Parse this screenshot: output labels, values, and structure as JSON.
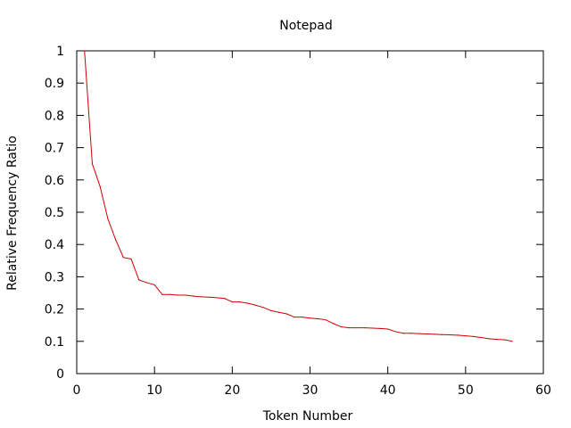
{
  "chart_data": {
    "type": "line",
    "title": "Notepad",
    "xlabel": "Token Number",
    "ylabel": "Relative Frequency Ratio",
    "xlim": [
      0,
      60
    ],
    "ylim": [
      0,
      1
    ],
    "x_ticks": [
      0,
      10,
      20,
      30,
      40,
      50,
      60
    ],
    "y_ticks": [
      0,
      0.1,
      0.2,
      0.3,
      0.4,
      0.5,
      0.6,
      0.7,
      0.8,
      0.9,
      1
    ],
    "x_tick_labels": [
      "0",
      "10",
      "20",
      "30",
      "40",
      "50",
      "60"
    ],
    "y_tick_labels": [
      "0",
      "0.1",
      "0.2",
      "0.3",
      "0.4",
      "0.5",
      "0.6",
      "0.7",
      "0.8",
      "0.9",
      "1"
    ],
    "grid": false,
    "legend": "none",
    "series": [
      {
        "color": "#cc0000",
        "x": [
          1,
          2,
          3,
          4,
          5,
          6,
          7,
          8,
          9,
          10,
          11,
          12,
          13,
          14,
          15,
          16,
          17,
          18,
          19,
          20,
          21,
          22,
          23,
          24,
          25,
          26,
          27,
          28,
          29,
          30,
          31,
          32,
          33,
          34,
          35,
          36,
          37,
          38,
          39,
          40,
          41,
          42,
          43,
          44,
          45,
          46,
          47,
          48,
          49,
          50,
          51,
          52,
          53,
          54,
          55,
          56
        ],
        "values": [
          1.0,
          0.65,
          0.58,
          0.48,
          0.415,
          0.36,
          0.355,
          0.29,
          0.282,
          0.275,
          0.245,
          0.245,
          0.243,
          0.243,
          0.24,
          0.238,
          0.237,
          0.235,
          0.233,
          0.222,
          0.222,
          0.218,
          0.212,
          0.205,
          0.195,
          0.19,
          0.185,
          0.175,
          0.175,
          0.172,
          0.17,
          0.167,
          0.155,
          0.145,
          0.142,
          0.142,
          0.142,
          0.141,
          0.14,
          0.138,
          0.13,
          0.125,
          0.125,
          0.124,
          0.123,
          0.122,
          0.121,
          0.12,
          0.119,
          0.117,
          0.115,
          0.112,
          0.108,
          0.106,
          0.105,
          0.1
        ]
      }
    ]
  }
}
